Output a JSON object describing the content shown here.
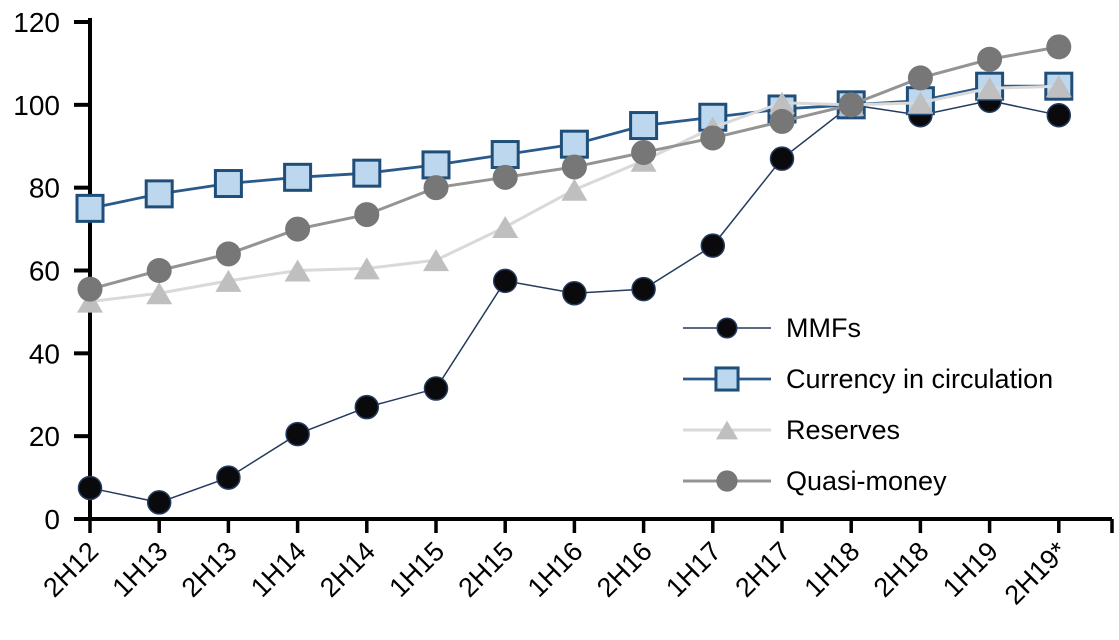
{
  "chart_data": {
    "type": "line",
    "title": "",
    "xlabel": "",
    "ylabel": "",
    "categories": [
      "2H12",
      "1H13",
      "2H13",
      "1H14",
      "2H14",
      "1H15",
      "2H15",
      "1H16",
      "2H16",
      "1H17",
      "2H17",
      "1H18",
      "2H18",
      "1H19",
      "2H19*"
    ],
    "series": [
      {
        "name": "MMFs",
        "marker": "circle",
        "marker_fill": "#0a0a0c",
        "marker_stroke": "#243a5e",
        "marker_r": 11.5,
        "line_color": "#243a5e",
        "line_width": 1.5,
        "values": [
          7.5,
          4,
          10,
          20.5,
          27,
          31.5,
          57.5,
          54.5,
          55.5,
          66,
          87,
          100,
          97.5,
          101,
          97.5
        ]
      },
      {
        "name": "Currency in circulation",
        "marker": "square",
        "marker_fill": "#bdd7ee",
        "marker_stroke": "#1f4e79",
        "line_color": "#2a5a8c",
        "line_width": 2.8,
        "values": [
          75,
          78.5,
          81,
          82.5,
          83.5,
          85.5,
          88,
          90.5,
          95,
          97,
          99,
          100,
          101,
          104.5,
          104.5
        ]
      },
      {
        "name": "Reserves",
        "marker": "triangle",
        "marker_fill": "#bfbfbf",
        "marker_stroke": "none",
        "line_color": "#d9d9d9",
        "line_width": 3,
        "values": [
          52.5,
          54.5,
          57.5,
          60,
          60.5,
          62.5,
          70.5,
          79.5,
          86.5,
          94.5,
          100.5,
          100,
          100.5,
          104,
          104.5
        ]
      },
      {
        "name": "Quasi-money",
        "marker": "circle",
        "marker_fill": "#777777",
        "marker_stroke": "none",
        "marker_r": 12.5,
        "line_color": "#949494",
        "line_width": 3,
        "values": [
          55.5,
          60,
          64,
          70,
          73.5,
          80,
          82.5,
          85,
          88.5,
          92,
          96,
          100,
          106.5,
          111,
          114
        ]
      }
    ],
    "ylim": [
      0,
      120
    ],
    "yticks": [
      0,
      20,
      40,
      60,
      80,
      100,
      120
    ],
    "axis_color": "#000000",
    "background_color": "#ffffff",
    "grid": false,
    "legend_position": "inside-middle-right",
    "x_tick_label_rotation_deg": -45
  }
}
